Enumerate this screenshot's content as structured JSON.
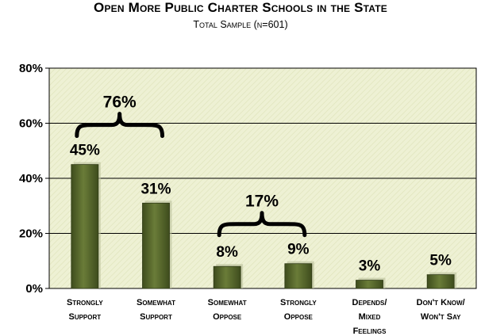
{
  "header": {
    "title": "Open More Public Charter Schools in the State",
    "subtitle": "Total Sample (n=601)"
  },
  "chart_data": {
    "type": "bar",
    "title": "Open More Public Charter Schools in the State",
    "subtitle": "Total Sample (n=601)",
    "categories": [
      [
        "Strongly",
        "Support"
      ],
      [
        "Somewhat",
        "Support"
      ],
      [
        "Somewhat",
        "Oppose"
      ],
      [
        "Strongly",
        "Oppose"
      ],
      [
        "Depends/",
        "Mixed",
        "Feelings"
      ],
      [
        "Don't Know/",
        "Won't Say"
      ]
    ],
    "values": [
      45,
      31,
      8,
      9,
      3,
      5
    ],
    "data_labels": [
      "45%",
      "31%",
      "8%",
      "9%",
      "3%",
      "5%"
    ],
    "ylim": [
      0,
      80
    ],
    "yticks": [
      0,
      20,
      40,
      60,
      80
    ],
    "ytick_labels": [
      "0%",
      "20%",
      "40%",
      "60%",
      "80%"
    ],
    "bar_color": "#4f5f28",
    "plot_background": "#eef1d4",
    "groups": [
      {
        "label": "76%",
        "categories": [
          0,
          1
        ]
      },
      {
        "label": "17%",
        "categories": [
          2,
          3
        ]
      }
    ]
  }
}
